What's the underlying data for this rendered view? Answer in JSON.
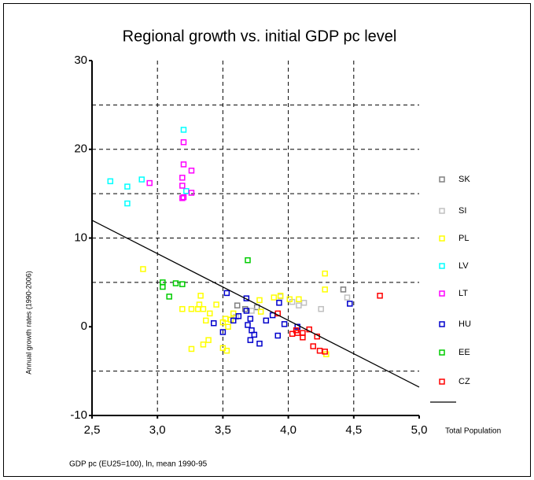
{
  "chart_data": {
    "type": "scatter",
    "title": "Regional growth vs. initial GDP pc level",
    "x_label": "GDP pc (EU25=100), ln, mean 1990-95",
    "y_label": "Annual growth rates (1990-2006)",
    "xlim": [
      2.5,
      5.0
    ],
    "ylim": [
      -10,
      30
    ],
    "xticks": [
      {
        "value": 2.5,
        "label": "2,5"
      },
      {
        "value": 3.0,
        "label": "3,0"
      },
      {
        "value": 3.5,
        "label": "3,5"
      },
      {
        "value": 4.0,
        "label": "4,0"
      },
      {
        "value": 4.5,
        "label": "4,5"
      },
      {
        "value": 5.0,
        "label": "5,0"
      }
    ],
    "yticks": [
      -10,
      0,
      10,
      20,
      30
    ],
    "xgrid": [
      3.0,
      3.5,
      4.0,
      4.5
    ],
    "ygrid": [
      -5,
      5,
      10,
      15,
      20,
      25
    ],
    "series": [
      {
        "name": "SK",
        "color": "#808080",
        "x": [
          4.42,
          3.61,
          3.67,
          3.76
        ],
        "values": [
          4.2,
          2.4,
          2.0,
          2.2
        ]
      },
      {
        "name": "SI",
        "color": "#c0c0c0",
        "x": [
          3.6,
          3.72,
          4.03,
          4.08,
          4.12,
          4.25,
          4.45,
          3.94
        ],
        "values": [
          1.1,
          1.8,
          2.8,
          2.4,
          2.7,
          2.0,
          3.3,
          3.4
        ]
      },
      {
        "name": "PL",
        "color": "#ffff00",
        "x": [
          2.89,
          3.19,
          3.33,
          3.32,
          3.35,
          3.31,
          3.26,
          3.4,
          3.37,
          3.39,
          3.35,
          3.26,
          3.45,
          3.52,
          3.54,
          3.5,
          3.5,
          3.53,
          3.58,
          3.56,
          3.79,
          3.78,
          3.89,
          3.94,
          4.01,
          4.08,
          4.28,
          4.28,
          4.29
        ],
        "values": [
          6.5,
          2.0,
          3.5,
          2.5,
          2.0,
          2.0,
          2.0,
          1.5,
          0.7,
          -1.5,
          -2.0,
          -2.5,
          2.5,
          0.9,
          0.0,
          0.5,
          -2.4,
          -2.7,
          1.5,
          0.8,
          1.7,
          3.0,
          3.3,
          3.5,
          3.1,
          3.1,
          4.2,
          6.0,
          -3.1
        ]
      },
      {
        "name": "LV",
        "color": "#00ffff",
        "x": [
          2.64,
          2.77,
          2.77,
          2.88,
          3.2,
          3.22
        ],
        "values": [
          16.4,
          15.8,
          13.9,
          16.6,
          22.2,
          15.3
        ]
      },
      {
        "name": "LT",
        "color": "#ff00ff",
        "x": [
          2.94,
          3.19,
          3.19,
          3.19,
          3.26,
          3.26,
          3.2,
          3.2,
          3.2
        ],
        "values": [
          16.2,
          16.8,
          15.9,
          14.5,
          17.6,
          15.1,
          20.8,
          18.3,
          14.6
        ]
      },
      {
        "name": "HU",
        "color": "#0000cc",
        "x": [
          3.53,
          3.68,
          3.62,
          3.58,
          3.43,
          3.5,
          3.69,
          3.71,
          3.72,
          3.71,
          3.74,
          3.78,
          3.83,
          3.88,
          3.93,
          3.92,
          3.97,
          4.07,
          4.47,
          3.68
        ],
        "values": [
          3.8,
          3.2,
          1.2,
          0.7,
          0.4,
          -0.6,
          0.2,
          0.9,
          -0.4,
          -1.5,
          -0.9,
          -1.9,
          0.7,
          1.3,
          2.7,
          -1.0,
          0.3,
          0.0,
          2.6,
          1.8
        ]
      },
      {
        "name": "EE",
        "color": "#00cc00",
        "x": [
          3.04,
          3.04,
          3.14,
          3.19,
          3.09,
          3.69
        ],
        "values": [
          5.0,
          4.5,
          4.9,
          4.8,
          3.4,
          7.5
        ]
      },
      {
        "name": "CZ",
        "color": "#ff0000",
        "x": [
          3.92,
          4.06,
          4.07,
          4.03,
          4.11,
          4.11,
          4.16,
          4.19,
          4.22,
          4.24,
          4.28,
          4.7
        ],
        "values": [
          1.5,
          -0.4,
          -0.7,
          -0.8,
          -0.7,
          -1.2,
          -0.3,
          -2.2,
          -1.1,
          -2.7,
          -2.8,
          3.5
        ]
      }
    ],
    "fit": {
      "name": "Total Population",
      "color": "#000000",
      "x": [
        2.5,
        5.0
      ],
      "values": [
        12.0,
        -6.8
      ]
    }
  }
}
